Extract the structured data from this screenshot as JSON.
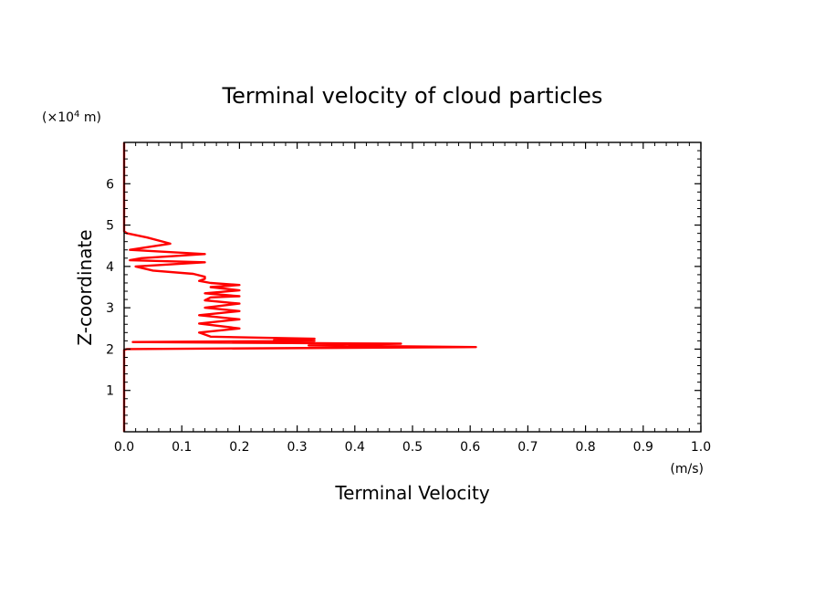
{
  "chart_data": {
    "type": "line",
    "title": "Terminal velocity of cloud particles",
    "xlabel": "Terminal Velocity",
    "ylabel": "Z-coordinate",
    "x_unit": "(m/s)",
    "y_unit_prefix": "(×10",
    "y_unit_exp": "4",
    "y_unit_suffix": " m)",
    "xlim": [
      0,
      1
    ],
    "ylim": [
      0,
      7
    ],
    "grid": false,
    "x_ticks": [
      "0.0",
      "0.1",
      "0.2",
      "0.3",
      "0.4",
      "0.5",
      "0.6",
      "0.7",
      "0.8",
      "0.9",
      "1.0"
    ],
    "y_ticks": [
      "1",
      "2",
      "3",
      "4",
      "5",
      "6"
    ],
    "series": [
      {
        "name": "Terminal velocity",
        "color": "#ff0000",
        "x": [
          0,
          0,
          0.005,
          0.61,
          0.32,
          0.48,
          0.015,
          0.33,
          0.26,
          0.33,
          0.15,
          0.13,
          0.2,
          0.13,
          0.2,
          0.13,
          0.2,
          0.14,
          0.2,
          0.14,
          0.15,
          0.2,
          0.14,
          0.2,
          0.15,
          0.2,
          0.15,
          0.13,
          0.14,
          0.14,
          0.12,
          0.05,
          0.02,
          0.14,
          0.01,
          0.03,
          0.14,
          0.01,
          0.08,
          0.04,
          0.005,
          0.0,
          0.0,
          0.0
        ],
        "y": [
          0,
          1.98,
          2.0,
          2.05,
          2.09,
          2.13,
          2.17,
          2.2,
          2.22,
          2.25,
          2.3,
          2.4,
          2.5,
          2.62,
          2.72,
          2.82,
          2.92,
          3.0,
          3.1,
          3.18,
          3.25,
          3.28,
          3.35,
          3.42,
          3.5,
          3.55,
          3.6,
          3.65,
          3.7,
          3.75,
          3.82,
          3.9,
          4.0,
          4.1,
          4.15,
          4.2,
          4.3,
          4.4,
          4.55,
          4.7,
          4.8,
          4.85,
          5.5,
          7.0
        ]
      }
    ]
  }
}
